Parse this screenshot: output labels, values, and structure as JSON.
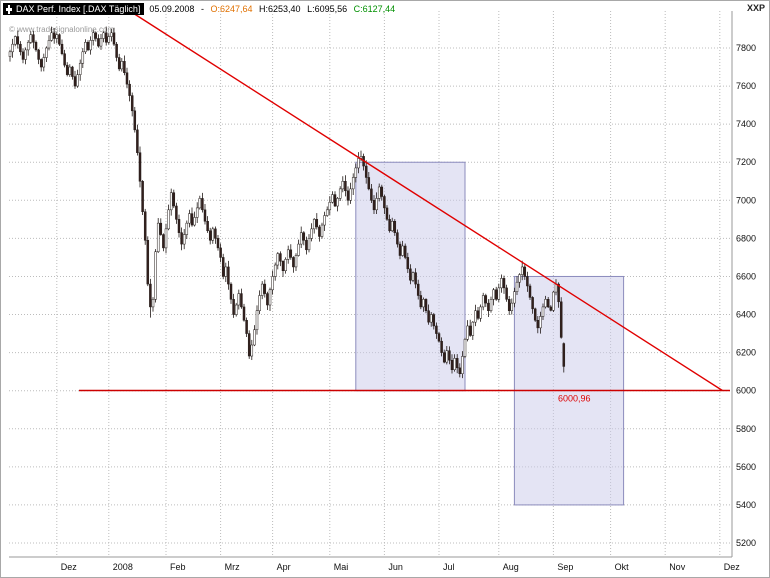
{
  "title_bar": {
    "instrument": "DAX Perf. Index [.DAX Täglich]",
    "date": "05.09.2008",
    "separator": "-",
    "open": "O:6247,64",
    "high": "H:6253,40",
    "low": "L:6095,56",
    "close": "C:6127,44"
  },
  "watermark": "© www.tradesignalonline.com",
  "top_right_label": "XXP",
  "colors": {
    "grid": "#bcbcbc",
    "frame": "#9a9a9a",
    "axis_text": "#111111",
    "up_candle": "#ffffff",
    "down_candle": "#33201d",
    "candle_stroke": "#221a18",
    "trendline": "#e00000",
    "support_line": "#cc0000",
    "support_label": "#dd0000",
    "box_fill": "#c9c9ea",
    "box_stroke": "#8b8bbd",
    "quote_open": "#e07000",
    "quote_high": "#000000",
    "quote_low": "#000000",
    "quote_close": "#009000",
    "watermark": "#9a9a9a"
  },
  "chart_data": {
    "type": "candlestick",
    "title": "DAX Perf. Index [.DAX Täglich]",
    "xlabel": "",
    "ylabel": "",
    "grid": true,
    "legend": false,
    "y_axis": {
      "ticks": [
        5200,
        5400,
        5600,
        5800,
        6000,
        6200,
        6400,
        6600,
        6800,
        7000,
        7200,
        7400,
        7600,
        7800
      ],
      "range": [
        5130,
        7995
      ]
    },
    "x_axis": {
      "month_ticks": [
        {
          "label": "Dez",
          "day": 18
        },
        {
          "label": "2008",
          "day": 38
        },
        {
          "label": "Feb",
          "day": 60
        },
        {
          "label": "Mrz",
          "day": 81
        },
        {
          "label": "Apr",
          "day": 101
        },
        {
          "label": "Mai",
          "day": 123
        },
        {
          "label": "Jun",
          "day": 144
        },
        {
          "label": "Jul",
          "day": 165
        },
        {
          "label": "Aug",
          "day": 188
        },
        {
          "label": "Sep",
          "day": 209
        },
        {
          "label": "Okt",
          "day": 231
        },
        {
          "label": "Nov",
          "day": 252
        },
        {
          "label": "Dez",
          "day": 273
        }
      ]
    },
    "closes": [
      7780,
      7820,
      7860,
      7820,
      7780,
      7740,
      7790,
      7830,
      7870,
      7830,
      7790,
      7740,
      7700,
      7750,
      7800,
      7840,
      7880,
      7850,
      7870,
      7820,
      7770,
      7710,
      7660,
      7700,
      7650,
      7600,
      7660,
      7720,
      7780,
      7830,
      7790,
      7840,
      7880,
      7850,
      7810,
      7850,
      7880,
      7830,
      7860,
      7880,
      7820,
      7750,
      7690,
      7730,
      7670,
      7610,
      7550,
      7470,
      7370,
      7250,
      7100,
      6940,
      6790,
      6560,
      6440,
      6480,
      6730,
      6880,
      6820,
      6750,
      6850,
      6950,
      7040,
      6970,
      6900,
      6830,
      6770,
      6820,
      6880,
      6930,
      6870,
      6910,
      6960,
      7010,
      6950,
      6890,
      6840,
      6790,
      6850,
      6800,
      6750,
      6700,
      6600,
      6650,
      6560,
      6480,
      6400,
      6450,
      6510,
      6440,
      6370,
      6300,
      6182,
      6240,
      6320,
      6420,
      6500,
      6560,
      6510,
      6450,
      6530,
      6600,
      6660,
      6720,
      6680,
      6630,
      6690,
      6740,
      6700,
      6650,
      6710,
      6770,
      6830,
      6790,
      6740,
      6800,
      6850,
      6900,
      6860,
      6810,
      6870,
      6920,
      6950,
      6990,
      7030,
      6970,
      7010,
      7060,
      7100,
      7050,
      7000,
      7060,
      7120,
      7170,
      7220,
      7231,
      7180,
      7120,
      7060,
      7000,
      6950,
      7010,
      7070,
      7020,
      6960,
      6900,
      6840,
      6890,
      6830,
      6770,
      6710,
      6760,
      6700,
      6640,
      6580,
      6620,
      6560,
      6500,
      6440,
      6480,
      6420,
      6360,
      6400,
      6340,
      6300,
      6260,
      6200,
      6150,
      6210,
      6160,
      6110,
      6170,
      6120,
      6089,
      6180,
      6270,
      6340,
      6290,
      6360,
      6420,
      6380,
      6440,
      6500,
      6460,
      6420,
      6480,
      6530,
      6480,
      6540,
      6590,
      6540,
      6480,
      6420,
      6460,
      6520,
      6570,
      6610,
      6650,
      6600,
      6550,
      6490,
      6430,
      6370,
      6330,
      6390,
      6440,
      6480,
      6440,
      6422,
      6518,
      6560,
      6467,
      6280,
      6127.44
    ],
    "low_overrides": {
      "54": 6384,
      "92": 6167,
      "173": 6070
    },
    "last_candle": {
      "open": 6247.64,
      "high": 6253.4,
      "low": 6095.56,
      "close": 6127.44
    },
    "annotations": {
      "trendline": {
        "from_day": 46,
        "from_price": 7995,
        "to_day": 274,
        "to_price": 6001
      },
      "support_line": {
        "price": 6000.96,
        "label": "6000,96"
      },
      "boxes": [
        {
          "from_day": 133,
          "to_day": 175,
          "top_price": 7200,
          "bottom_price": 6000
        },
        {
          "from_day": 194,
          "to_day": 236,
          "top_price": 6600,
          "bottom_price": 5400
        }
      ]
    }
  }
}
